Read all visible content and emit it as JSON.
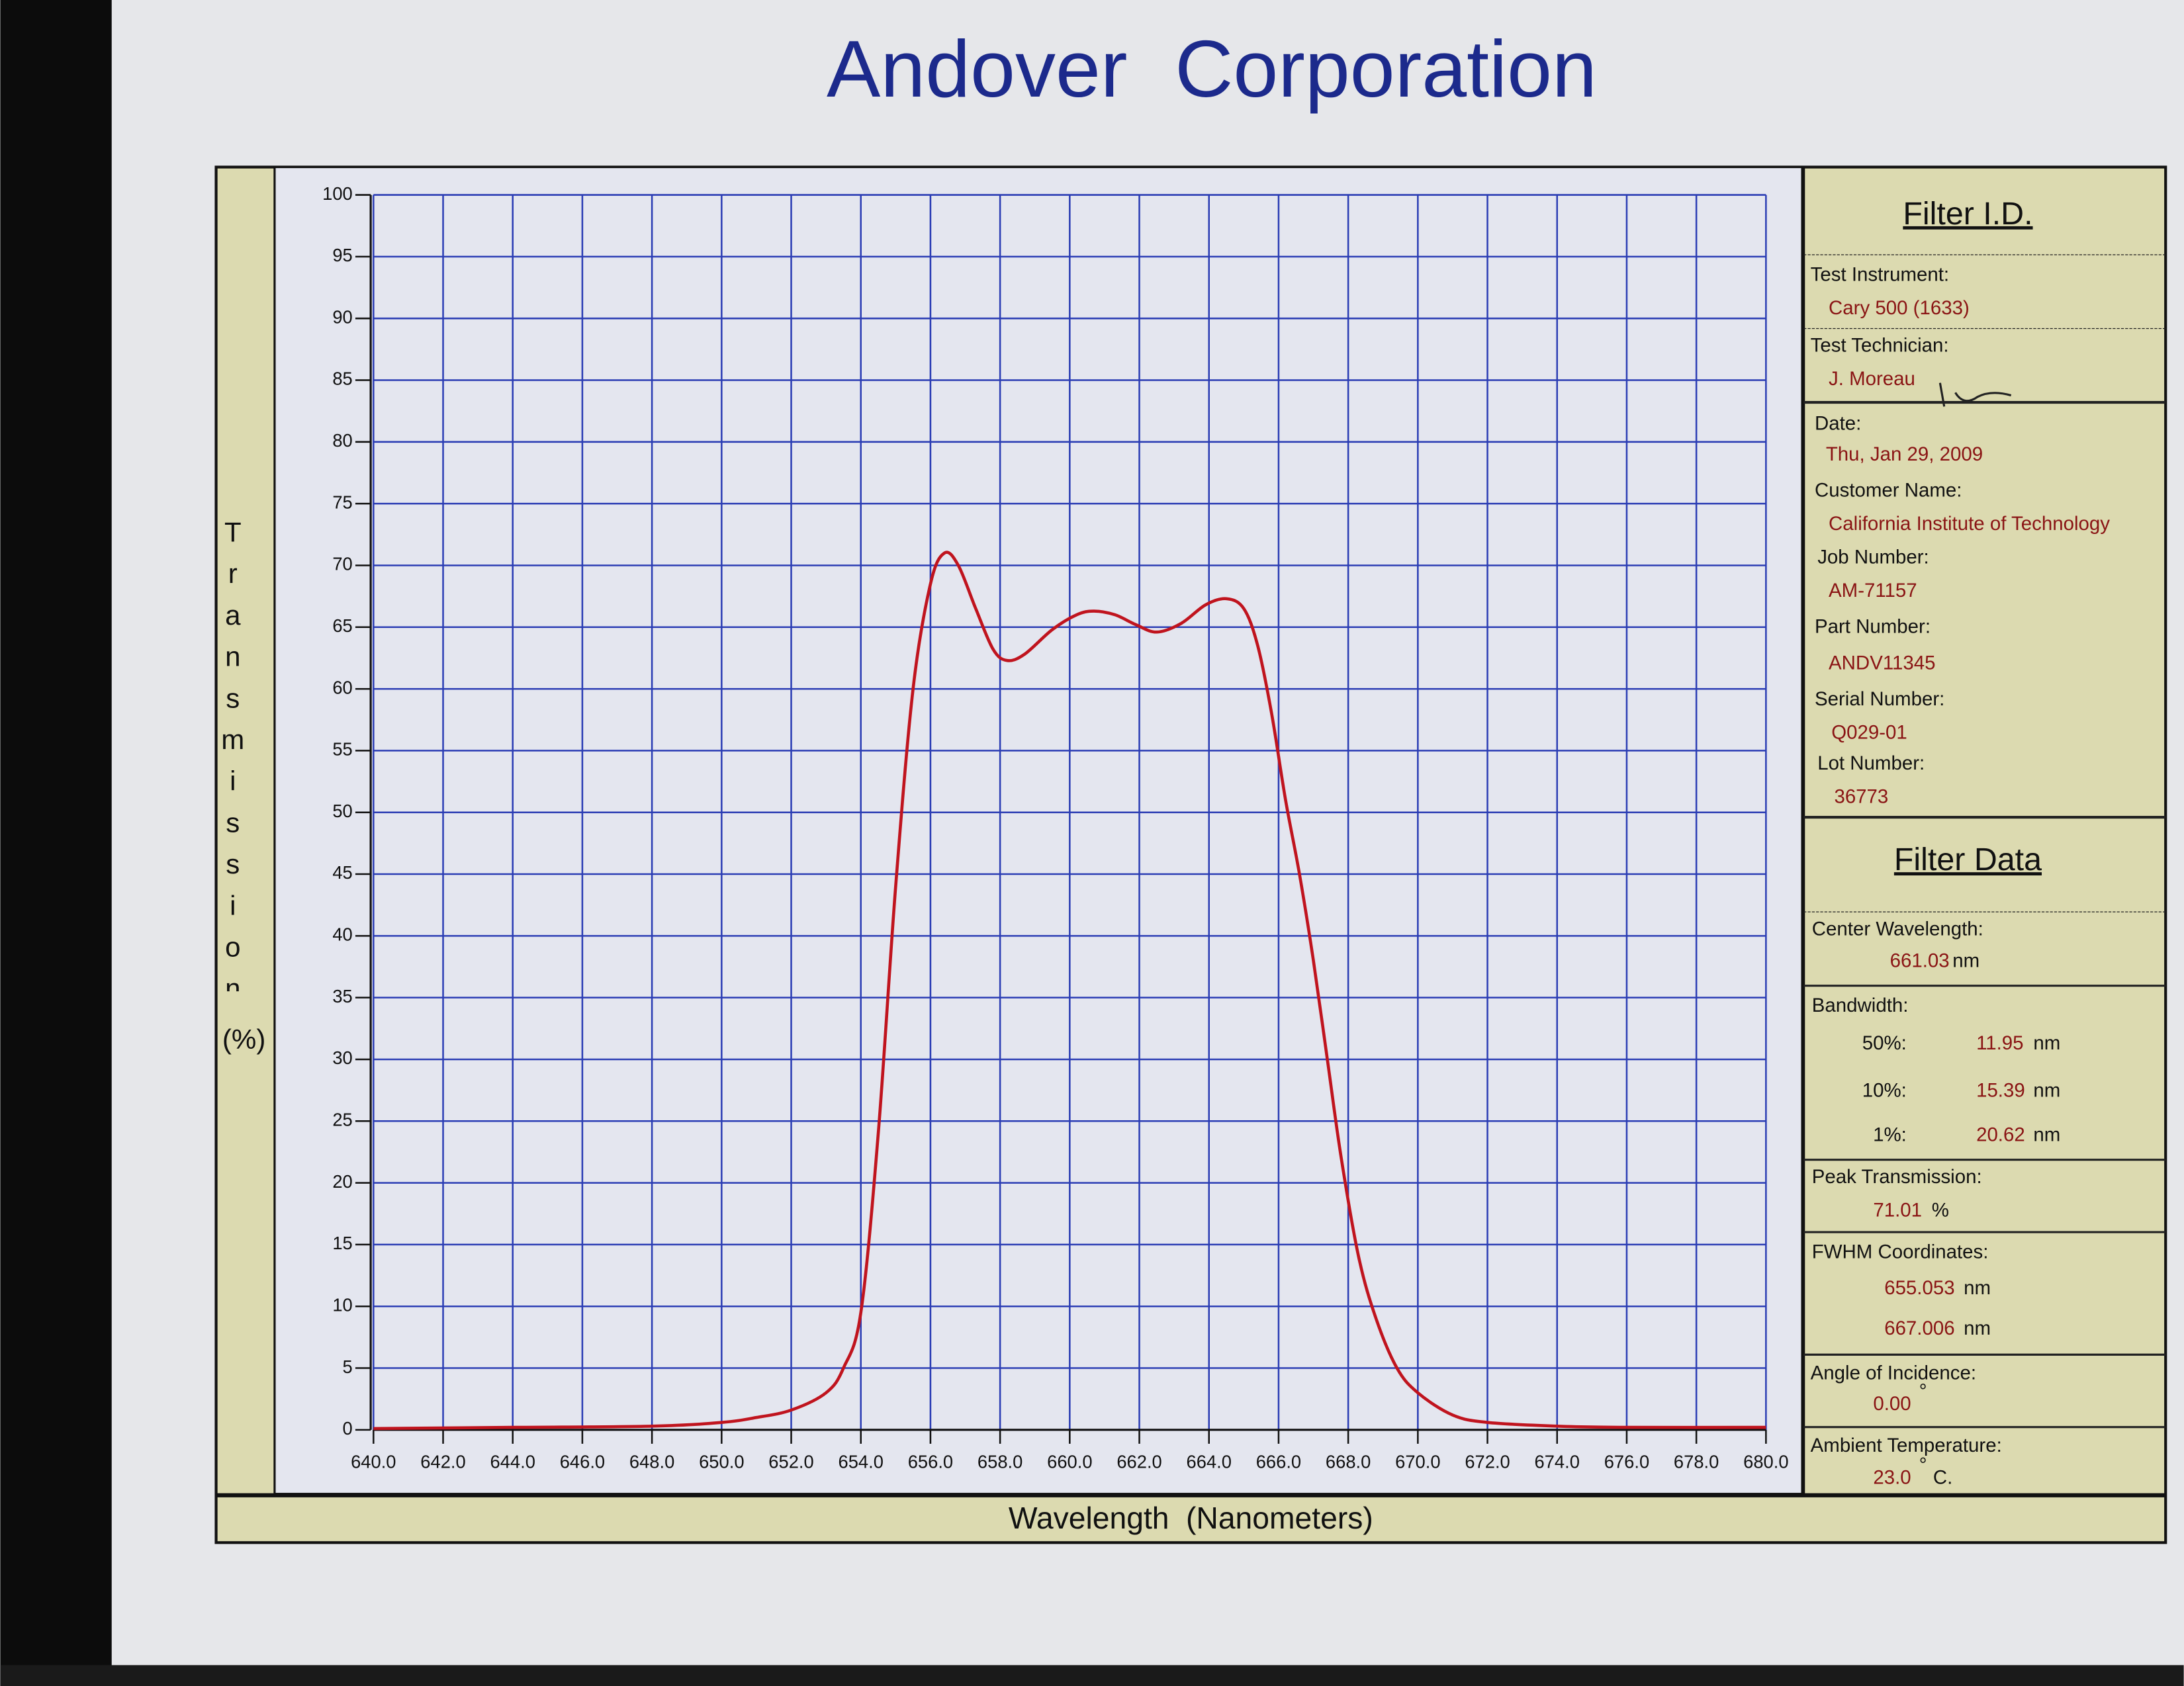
{
  "chart_data": {
    "type": "line",
    "title": "Andover Corporation",
    "xlabel": "Wavelength (Nanometers)",
    "ylabel": "Transmission",
    "yunit": "(%)",
    "xlim": [
      640,
      680
    ],
    "ylim": [
      0,
      100
    ],
    "xticks": [
      {
        "value": 640,
        "label": "640.0"
      },
      {
        "value": 642,
        "label": "642.0"
      },
      {
        "value": 644,
        "label": "644.0"
      },
      {
        "value": 646,
        "label": "646.0"
      },
      {
        "value": 648,
        "label": "648.0"
      },
      {
        "value": 650,
        "label": "650.0"
      },
      {
        "value": 652,
        "label": "652.0"
      },
      {
        "value": 654,
        "label": "654.0"
      },
      {
        "value": 656,
        "label": "656.0"
      },
      {
        "value": 658,
        "label": "658.0"
      },
      {
        "value": 660,
        "label": "660.0"
      },
      {
        "value": 662,
        "label": "662.0"
      },
      {
        "value": 664,
        "label": "664.0"
      },
      {
        "value": 666,
        "label": "666.0"
      },
      {
        "value": 668,
        "label": "668.0"
      },
      {
        "value": 670,
        "label": "670.0"
      },
      {
        "value": 672,
        "label": "672.0"
      },
      {
        "value": 674,
        "label": "674.0"
      },
      {
        "value": 676,
        "label": "676.0"
      },
      {
        "value": 678,
        "label": "678.0"
      },
      {
        "value": 680,
        "label": "680.0"
      }
    ],
    "yticks": [
      0,
      5,
      10,
      15,
      20,
      25,
      30,
      35,
      40,
      45,
      50,
      55,
      60,
      65,
      70,
      75,
      80,
      85,
      90,
      95,
      100
    ],
    "grid": true,
    "color": "#c0141e",
    "x": [
      640,
      644,
      648,
      650,
      651,
      652,
      653,
      653.5,
      654,
      654.5,
      655,
      655.5,
      656,
      656.4,
      656.8,
      657.3,
      657.8,
      658.2,
      658.7,
      659.5,
      660.2,
      660.7,
      661.3,
      661.9,
      662.5,
      663.2,
      663.9,
      664.5,
      665,
      665.4,
      665.8,
      666.2,
      666.6,
      667,
      667.4,
      667.8,
      668.3,
      668.8,
      669.4,
      670,
      671,
      672,
      674,
      676,
      680
    ],
    "values": [
      0.1,
      0.2,
      0.3,
      0.6,
      1,
      1.6,
      3,
      5,
      9.5,
      24,
      44,
      60,
      68.5,
      71,
      70,
      66.5,
      63.2,
      62.3,
      62.8,
      64.8,
      66,
      66.3,
      66,
      65.2,
      64.6,
      65.3,
      66.8,
      67.3,
      66.5,
      63.5,
      58,
      51,
      45,
      38,
      30,
      22,
      14,
      9,
      5,
      3,
      1.2,
      0.6,
      0.3,
      0.2,
      0.2
    ]
  },
  "panel": {
    "id_title": "Filter I.D.",
    "fields": [
      {
        "label": "Test Instrument:",
        "value": "Cary 500 (1633)"
      },
      {
        "label": "Test Technician:",
        "value": "J. Moreau"
      },
      {
        "label": "Date:",
        "value": "Thu, Jan 29, 2009"
      },
      {
        "label": "Customer Name:",
        "value": "California Institute of Technology"
      },
      {
        "label": "Job Number:",
        "value": "AM-71157"
      },
      {
        "label": "Part Number:",
        "value": "ANDV11345"
      },
      {
        "label": "Serial Number:",
        "value": "Q029-01"
      },
      {
        "label": "Lot Number:",
        "value": "36773"
      }
    ],
    "data_title": "Filter Data",
    "center": {
      "label": "Center Wavelength:",
      "value": "661.03",
      "unit": "nm"
    },
    "bandwidth": {
      "label": "Bandwidth:",
      "rows": [
        {
          "label": "50%:",
          "value": "11.95",
          "unit": "nm"
        },
        {
          "label": "10%:",
          "value": "15.39",
          "unit": "nm"
        },
        {
          "label": "1%:",
          "value": "20.62",
          "unit": "nm"
        }
      ]
    },
    "peak": {
      "label": "Peak Transmission:",
      "value": "71.01",
      "unit": "%"
    },
    "fwhm": {
      "label": "FWHM Coordinates:",
      "rows": [
        {
          "value": "655.053",
          "unit": "nm"
        },
        {
          "value": "667.006",
          "unit": "nm"
        }
      ]
    },
    "angle": {
      "label": "Angle of Incidence:",
      "value": "0.00",
      "unit": "°"
    },
    "temperature": {
      "label": "Ambient Temperature:",
      "value": "23.0",
      "unit": "°",
      "suffix": "C."
    }
  }
}
